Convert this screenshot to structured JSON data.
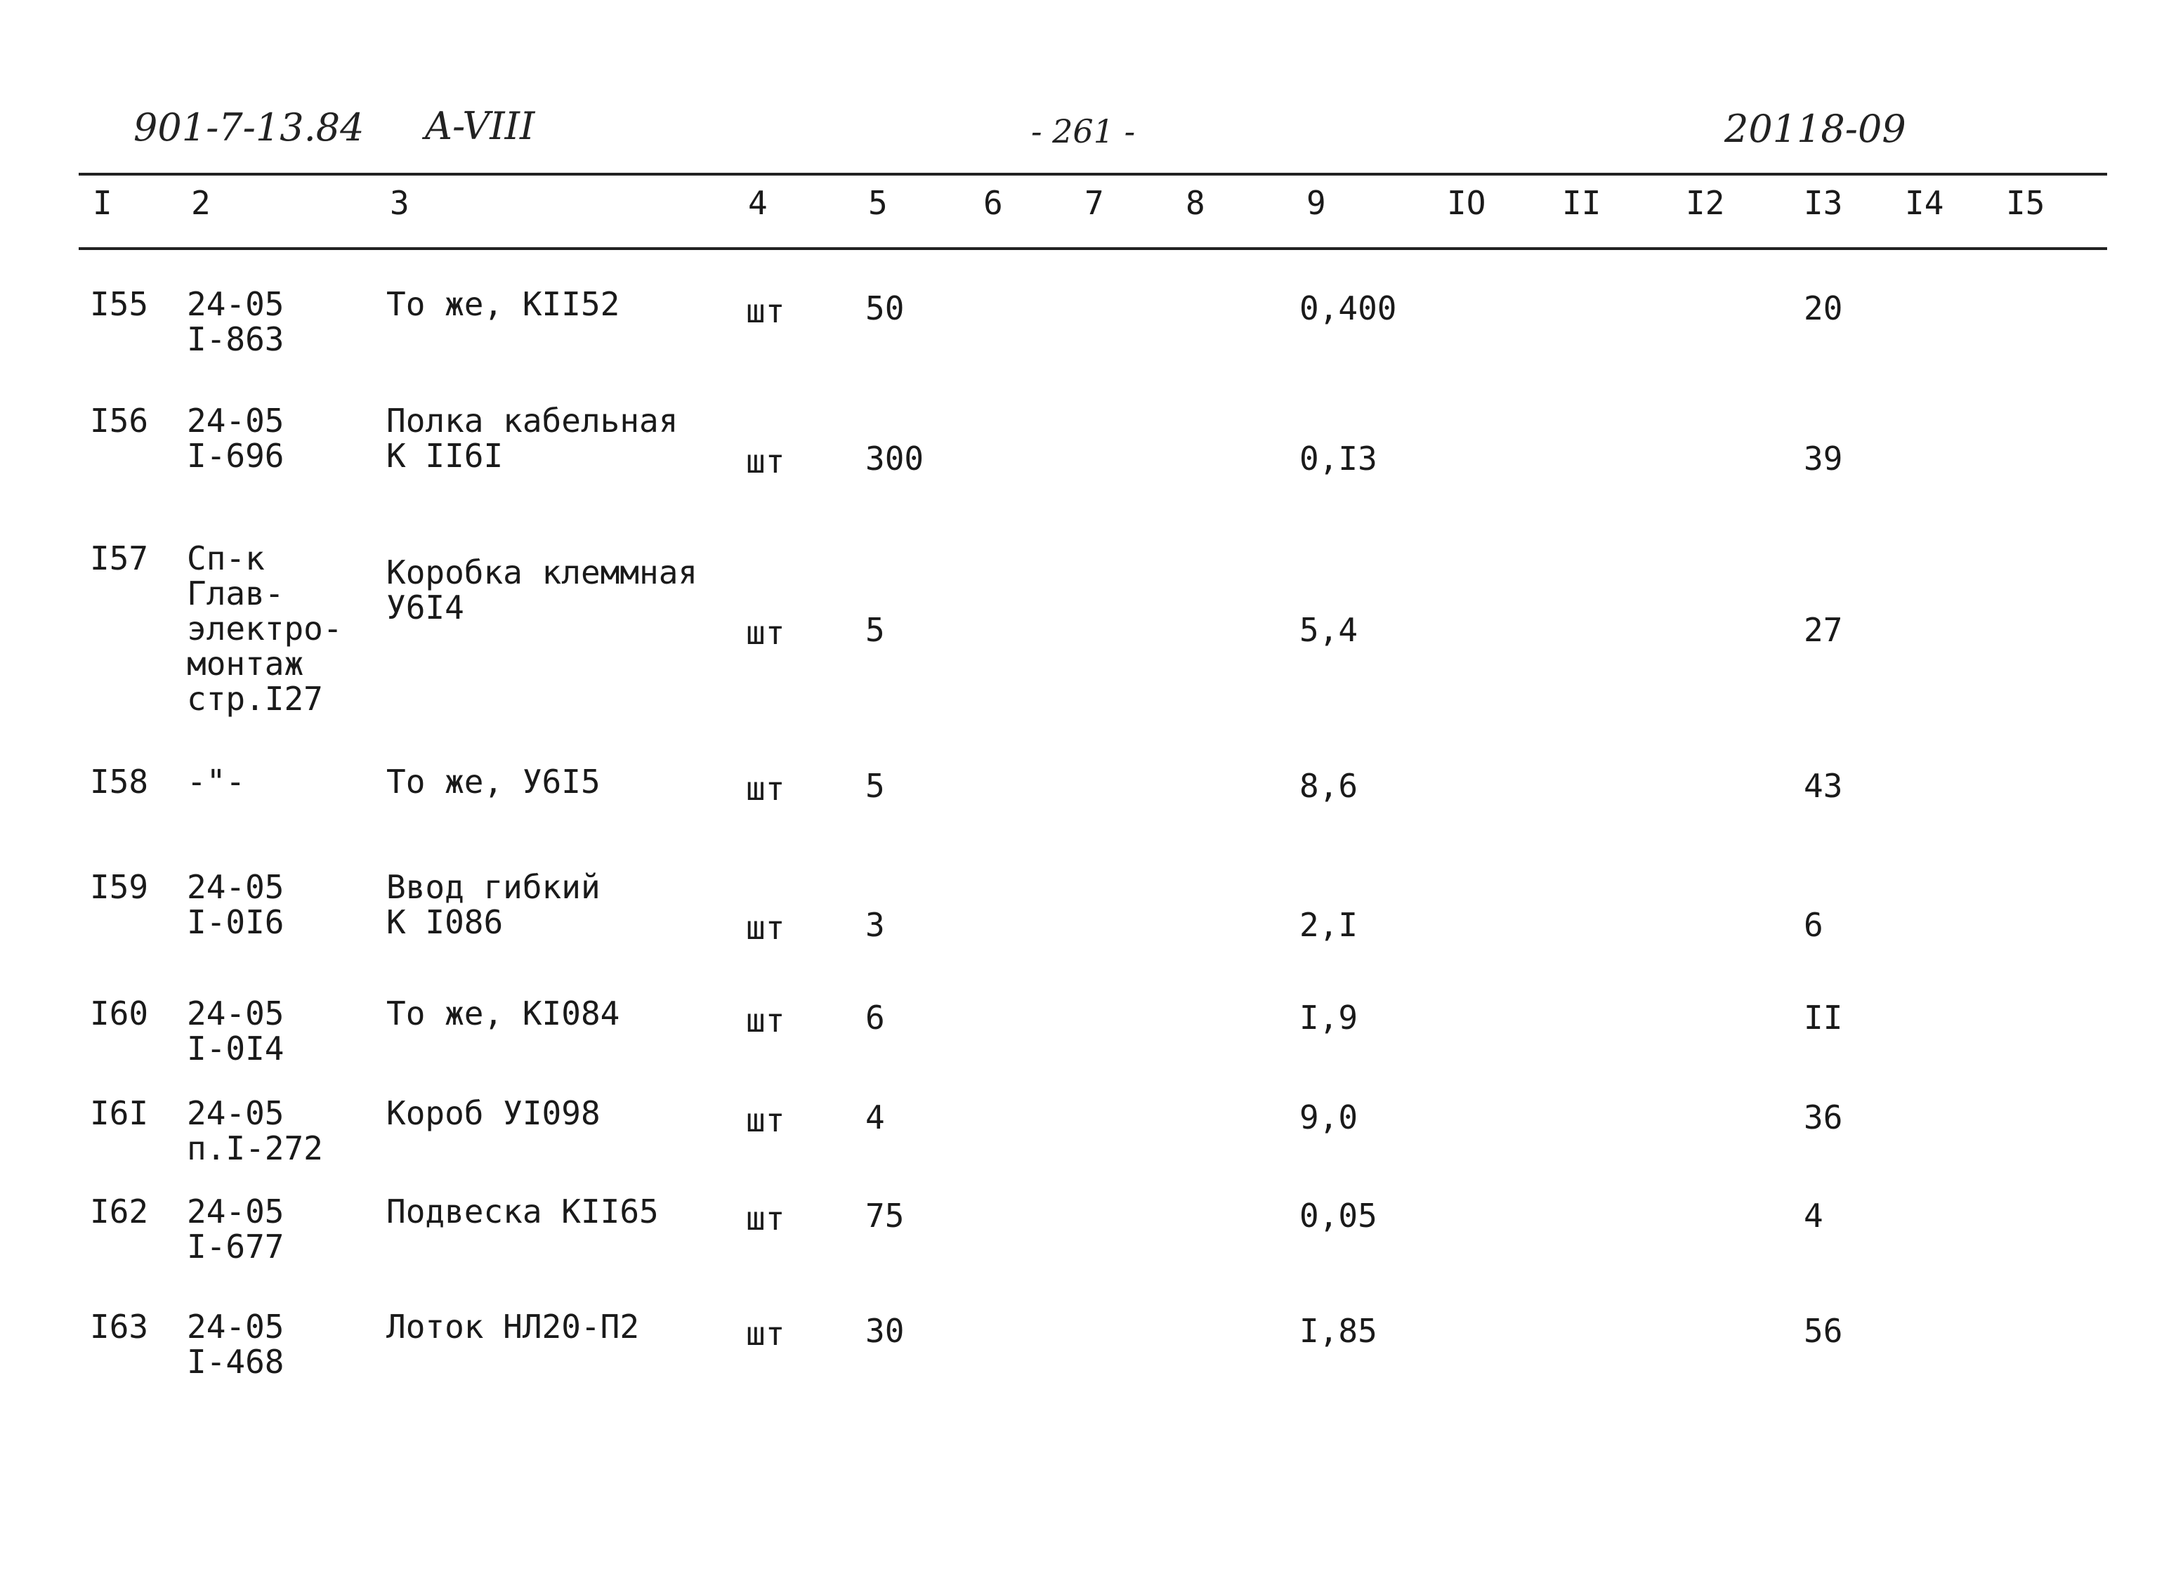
{
  "header": {
    "doc_number": "901-7-13.84",
    "album": "A-VIII",
    "page_number": "- 261 -",
    "sheet_code": "20118-09"
  },
  "column_numbers": [
    "I",
    "2",
    "3",
    "4",
    "5",
    "6",
    "7",
    "8",
    "9",
    "IO",
    "II",
    "I2",
    "I3",
    "I4",
    "I5"
  ],
  "rows": [
    {
      "num": "I55",
      "code": [
        "24-05",
        "I-863"
      ],
      "name": [
        "То же, КII52"
      ],
      "unit": "шт",
      "qty": "50",
      "mass": "0,400",
      "total": "20"
    },
    {
      "num": "I56",
      "code": [
        "24-05",
        "I-696"
      ],
      "name": [
        "Полка кабельная",
        "К II6I"
      ],
      "unit": "шт",
      "qty": "300",
      "mass": "0,I3",
      "total": "39"
    },
    {
      "num": "I57",
      "code": [
        "Сп-к",
        "Глав-",
        "электро-",
        "монтаж",
        "стр.I27"
      ],
      "name": [
        "Коробка клеммная",
        "У6I4"
      ],
      "unit": "шт",
      "qty": "5",
      "mass": "5,4",
      "total": "27"
    },
    {
      "num": "I58",
      "code": [
        "-\"-"
      ],
      "name": [
        "То же, У6I5"
      ],
      "unit": "шт",
      "qty": "5",
      "mass": "8,6",
      "total": "43"
    },
    {
      "num": "I59",
      "code": [
        "24-05",
        "I-0I6"
      ],
      "name": [
        "Ввод гибкий",
        "К I086"
      ],
      "unit": "шт",
      "qty": "3",
      "mass": "2,I",
      "total": "6"
    },
    {
      "num": "I60",
      "code": [
        "24-05",
        "I-0I4"
      ],
      "name": [
        "То же, КI084"
      ],
      "unit": "шт",
      "qty": "6",
      "mass": "I,9",
      "total": "II"
    },
    {
      "num": "I6I",
      "code": [
        "24-05",
        "п.I-272"
      ],
      "name": [
        "Короб УI098"
      ],
      "unit": "шт",
      "qty": "4",
      "mass": "9,0",
      "total": "36"
    },
    {
      "num": "I62",
      "code": [
        "24-05",
        "I-677"
      ],
      "name": [
        "Подвеска КII65"
      ],
      "unit": "шт",
      "qty": "75",
      "mass": "0,05",
      "total": "4"
    },
    {
      "num": "I63",
      "code": [
        "24-05",
        "I-468"
      ],
      "name": [
        "Лоток НЛ20-П2"
      ],
      "unit": "шт",
      "qty": "30",
      "mass": "I,85",
      "total": "56"
    }
  ]
}
